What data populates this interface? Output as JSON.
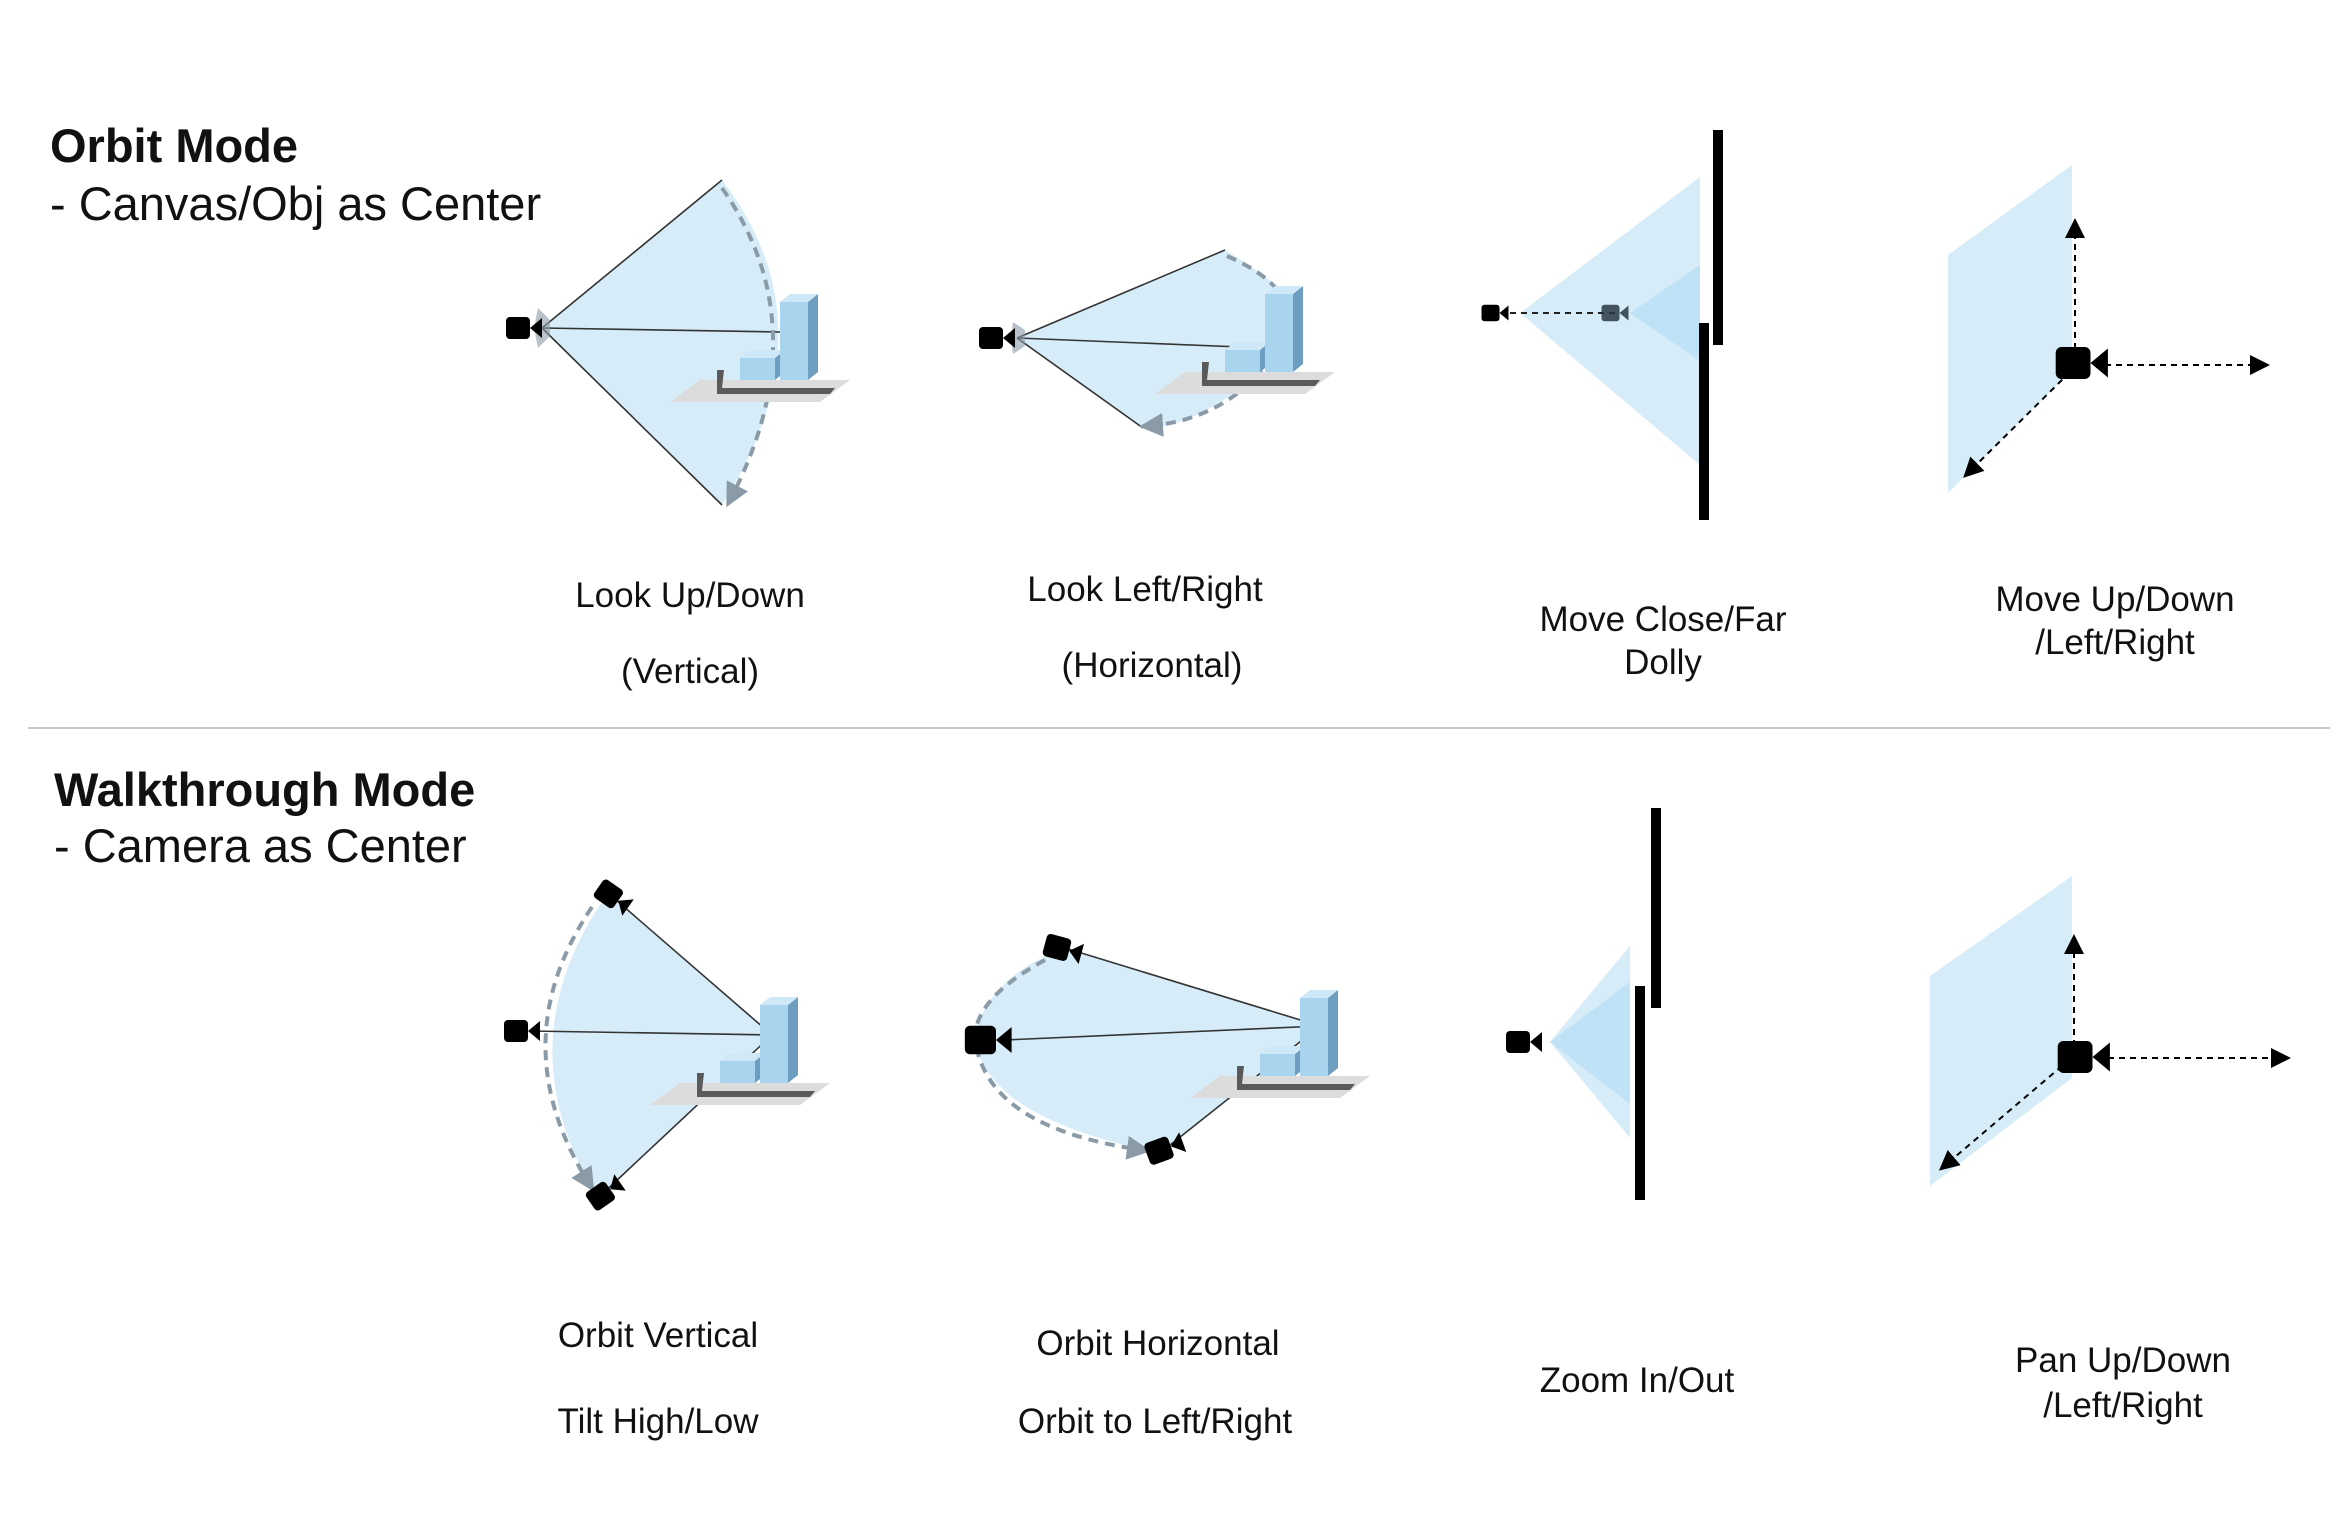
{
  "orbit_mode": {
    "title": "Orbit Mode",
    "subtitle": "- Canvas/Obj as Center",
    "panels": [
      {
        "caption_line1": "Look Up/Down",
        "caption_line2": "(Vertical)"
      },
      {
        "caption_line1": "Look Left/Right",
        "caption_line2": "(Horizontal)"
      },
      {
        "caption_line1": "Move Close/Far",
        "caption_line2": "Dolly"
      },
      {
        "caption_line1": "Move Up/Down",
        "caption_line2": "/Left/Right"
      }
    ]
  },
  "walkthrough_mode": {
    "title": "Walkthrough Mode",
    "subtitle": "- Camera as Center",
    "panels": [
      {
        "caption_line1": "Orbit Vertical",
        "caption_line2": "Tilt High/Low"
      },
      {
        "caption_line1": "Orbit Horizontal",
        "caption_line2": "Orbit to Left/Right"
      },
      {
        "caption_line1": "Zoom In/Out"
      },
      {
        "caption_line1": "Pan Up/Down",
        "caption_line2": "/Left/Right"
      }
    ]
  },
  "colors": {
    "frustum_fill": "#d6ecf8",
    "frustum_inner": "#bfe2f6",
    "arc_stroke": "#8a9aa6",
    "building_front": "#a9d4ee",
    "building_side": "#6d9dbf",
    "ground": "#d9d9d9",
    "ground_dark": "#5a5a5a",
    "camera": "#000000"
  }
}
